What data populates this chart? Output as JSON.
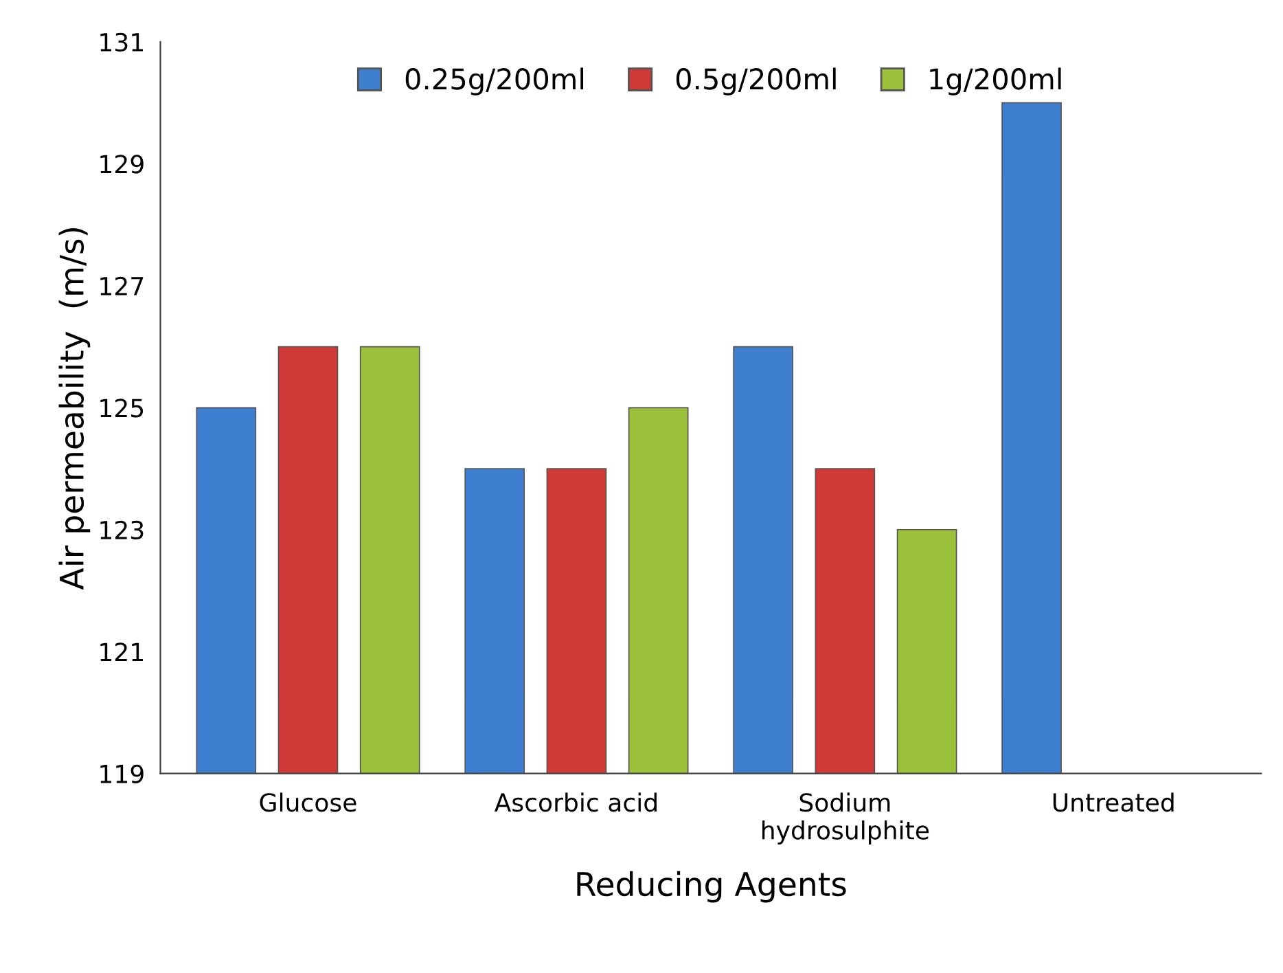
{
  "chart_data": {
    "type": "bar",
    "xlabel": "Reducing Agents",
    "ylabel": "Air permeability  (m/s)",
    "categories": [
      "Glucose",
      "Ascorbic acid",
      "Sodium\nhydrosulphite",
      "Untreated"
    ],
    "series": [
      {
        "name": "0.25g/200ml",
        "color": "#3f7fd0",
        "values": [
          125,
          124,
          126,
          130
        ]
      },
      {
        "name": "0.5g/200ml",
        "color": "#d03a36",
        "values": [
          126,
          124,
          124,
          null
        ]
      },
      {
        "name": "1g/200ml",
        "color": "#9cc13a",
        "values": [
          126,
          125,
          123,
          null
        ]
      }
    ],
    "ylim": [
      119,
      131
    ],
    "yticks": [
      119,
      121,
      123,
      125,
      127,
      129,
      131
    ],
    "grid": false,
    "legend": "top"
  }
}
